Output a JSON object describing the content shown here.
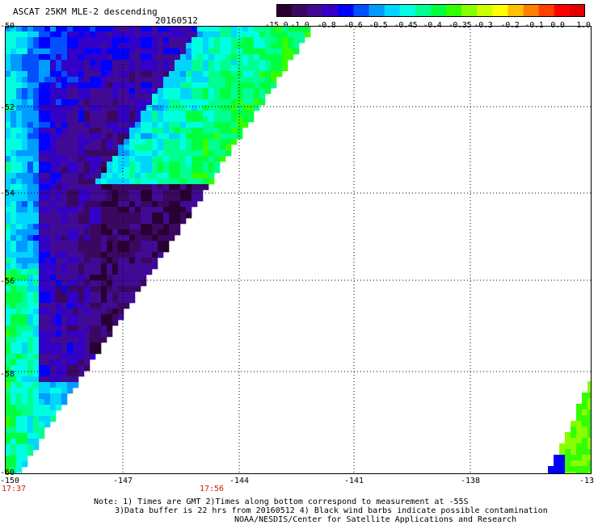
{
  "header": {
    "title": "ASCAT 25KM MLE-2 descending",
    "date": "20160512"
  },
  "colorbar": {
    "colors": [
      "#2a0033",
      "#3a0860",
      "#400a95",
      "#3300c8",
      "#0000ff",
      "#0050ff",
      "#009bff",
      "#00d5ff",
      "#00ffe0",
      "#00ff90",
      "#00ff40",
      "#33ff00",
      "#88ff00",
      "#ccff00",
      "#ffff00",
      "#ffc000",
      "#ff8000",
      "#ff4000",
      "#ff0000",
      "#e00000"
    ],
    "labels": [
      "-15.0",
      "-1.0",
      "-0.8",
      "-0.6",
      "-0.5",
      "-0.45",
      "-0.4",
      "-0.35",
      "-0.3",
      "-0.2",
      "-0.1",
      "0.0",
      "1.0"
    ]
  },
  "axes": {
    "lat_labels": [
      "-50",
      "-52",
      "-54",
      "-56",
      "-58",
      "-60"
    ],
    "lon_labels": [
      "-150",
      "-147",
      "-144",
      "-141",
      "-138",
      "-13"
    ],
    "time_labels": [
      "17:37",
      "17:56"
    ]
  },
  "notes": {
    "line1": "Note: 1) Times are GMT 2)Times along bottom correspond to measurement at -55S",
    "line2": "3)Data buffer is 22 hrs from 20160512 4) Black wind barbs indicate possible contamination",
    "line3": "NOAA/NESDIS/Center for Satellite Applications and Research"
  }
}
